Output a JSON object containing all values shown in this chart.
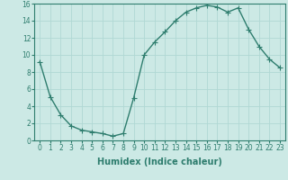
{
  "x": [
    0,
    1,
    2,
    3,
    4,
    5,
    6,
    7,
    8,
    9,
    10,
    11,
    12,
    13,
    14,
    15,
    16,
    17,
    18,
    19,
    20,
    21,
    22,
    23
  ],
  "y": [
    9.2,
    5.1,
    3.0,
    1.7,
    1.2,
    1.0,
    0.8,
    0.5,
    0.8,
    5.0,
    10.0,
    11.5,
    12.7,
    14.0,
    15.0,
    15.5,
    15.8,
    15.6,
    15.0,
    15.5,
    13.0,
    11.0,
    9.5,
    8.5
  ],
  "line_color": "#2e7d6e",
  "marker": "+",
  "marker_size": 4,
  "bg_color": "#cce9e5",
  "grid_color": "#b0d8d4",
  "xlabel": "Humidex (Indice chaleur)",
  "xlim": [
    -0.5,
    23.5
  ],
  "ylim": [
    0,
    16
  ],
  "yticks": [
    0,
    2,
    4,
    6,
    8,
    10,
    12,
    14,
    16
  ],
  "xticks": [
    0,
    1,
    2,
    3,
    4,
    5,
    6,
    7,
    8,
    9,
    10,
    11,
    12,
    13,
    14,
    15,
    16,
    17,
    18,
    19,
    20,
    21,
    22,
    23
  ],
  "tick_fontsize": 5.5,
  "label_fontsize": 7,
  "linewidth": 1.0,
  "marker_linewidth": 0.8
}
